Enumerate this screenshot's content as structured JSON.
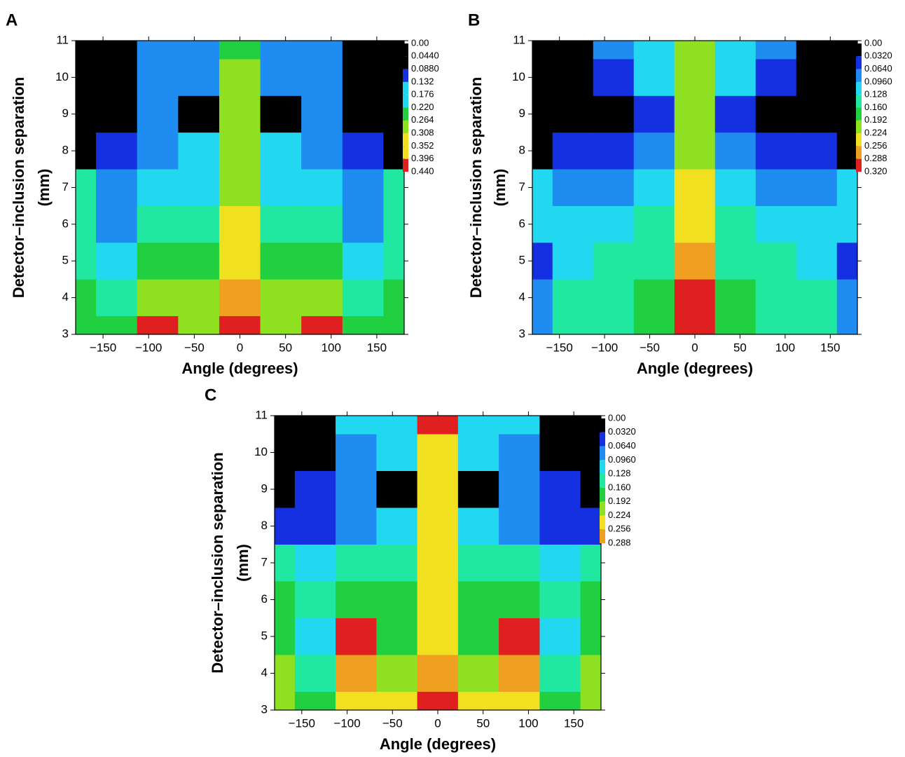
{
  "chart_data": [
    {
      "type": "contour",
      "panel": "A",
      "xlabel": "Angle (degrees)",
      "ylabel": [
        "Detector–inclusion separation",
        "(mm)"
      ],
      "x": [
        -180,
        -135,
        -90,
        -45,
        0,
        45,
        90,
        135,
        180
      ],
      "y": [
        3,
        4,
        5,
        6,
        7,
        8,
        9,
        10,
        11
      ],
      "z": [
        [
          0.24,
          0.22,
          0.4,
          0.3,
          0.44,
          0.3,
          0.4,
          0.22,
          0.24
        ],
        [
          0.22,
          0.2,
          0.3,
          0.28,
          0.37,
          0.28,
          0.3,
          0.2,
          0.22
        ],
        [
          0.2,
          0.14,
          0.25,
          0.24,
          0.33,
          0.24,
          0.25,
          0.14,
          0.2
        ],
        [
          0.18,
          0.13,
          0.2,
          0.2,
          0.31,
          0.2,
          0.2,
          0.13,
          0.18
        ],
        [
          0.2,
          0.12,
          0.15,
          0.17,
          0.3,
          0.17,
          0.15,
          0.12,
          0.2
        ],
        [
          0.04,
          0.06,
          0.12,
          0.14,
          0.29,
          0.14,
          0.12,
          0.06,
          0.04
        ],
        [
          0,
          0.01,
          0.09,
          0,
          0.28,
          0,
          0.09,
          0.01,
          0
        ],
        [
          0,
          0,
          0.1,
          0.09,
          0.27,
          0.09,
          0.1,
          0,
          0
        ],
        [
          0,
          0,
          0.11,
          0.12,
          0.26,
          0.12,
          0.11,
          0,
          0
        ]
      ],
      "xlim": [
        -180,
        180
      ],
      "ylim": [
        3,
        11
      ],
      "xticks": [
        {
          "value": -150,
          "label": "−150"
        },
        {
          "value": -100,
          "label": "−100"
        },
        {
          "value": -50,
          "label": "−50"
        },
        0,
        50,
        100,
        150
      ],
      "yticks": [
        3,
        4,
        5,
        6,
        7,
        8,
        9,
        10,
        11
      ],
      "zticks": [
        {
          "value": 0,
          "label": "0.00"
        },
        {
          "value": 0.044,
          "label": "0.0440"
        },
        {
          "value": 0.088,
          "label": "0.0880"
        },
        0.132,
        0.176,
        {
          "value": 0.22,
          "label": "0.220"
        },
        0.264,
        0.308,
        0.352,
        0.396,
        {
          "value": 0.44,
          "label": "0.440"
        }
      ],
      "colors": [
        "#000000",
        "#1530e0",
        "#1e8cf0",
        "#22d8f0",
        "#20e8a0",
        "#20d040",
        "#8ee020",
        "#f0e020",
        "#f0a020",
        "#e02020"
      ]
    },
    {
      "type": "contour",
      "panel": "B",
      "xlabel": "Angle (degrees)",
      "ylabel": [
        "Detector–inclusion separation",
        "(mm)"
      ],
      "x": [
        -180,
        -135,
        -90,
        -45,
        0,
        45,
        90,
        135,
        180
      ],
      "y": [
        3,
        4,
        5,
        6,
        7,
        8,
        9,
        10,
        11
      ],
      "z": [
        [
          0.08,
          0.13,
          0.14,
          0.17,
          0.32,
          0.17,
          0.14,
          0.13,
          0.08
        ],
        [
          0.07,
          0.13,
          0.14,
          0.16,
          0.29,
          0.16,
          0.14,
          0.13,
          0.07
        ],
        [
          0.06,
          0.12,
          0.14,
          0.15,
          0.27,
          0.15,
          0.14,
          0.12,
          0.06
        ],
        [
          0.1,
          0.1,
          0.11,
          0.13,
          0.24,
          0.13,
          0.11,
          0.1,
          0.1
        ],
        [
          0.12,
          0.09,
          0.08,
          0.1,
          0.23,
          0.1,
          0.08,
          0.09,
          0.12
        ],
        [
          0.03,
          0.04,
          0.04,
          0.07,
          0.22,
          0.07,
          0.04,
          0.04,
          0.03
        ],
        [
          0,
          0,
          0,
          0.06,
          0.22,
          0.06,
          0,
          0,
          0
        ],
        [
          0,
          0,
          0.05,
          0.1,
          0.21,
          0.1,
          0.05,
          0,
          0
        ],
        [
          0,
          0,
          0.09,
          0.1,
          0.2,
          0.1,
          0.09,
          0,
          0
        ]
      ],
      "xlim": [
        -180,
        180
      ],
      "ylim": [
        3,
        11
      ],
      "xticks": [
        {
          "value": -150,
          "label": "−150"
        },
        {
          "value": -100,
          "label": "−100"
        },
        {
          "value": -50,
          "label": "−50"
        },
        0,
        50,
        100,
        150
      ],
      "yticks": [
        3,
        4,
        5,
        6,
        7,
        8,
        9,
        10,
        11
      ],
      "zticks": [
        {
          "value": 0,
          "label": "0.00"
        },
        {
          "value": 0.032,
          "label": "0.0320"
        },
        {
          "value": 0.064,
          "label": "0.0640"
        },
        {
          "value": 0.096,
          "label": "0.0960"
        },
        0.128,
        {
          "value": 0.16,
          "label": "0.160"
        },
        0.192,
        0.224,
        0.256,
        0.288,
        {
          "value": 0.32,
          "label": "0.320"
        }
      ],
      "colors": [
        "#000000",
        "#1530e0",
        "#1e8cf0",
        "#22d8f0",
        "#20e8a0",
        "#20d040",
        "#8ee020",
        "#f0e020",
        "#f0a020",
        "#e02020"
      ]
    },
    {
      "type": "contour",
      "panel": "C",
      "xlabel": "Angle (degrees)",
      "ylabel": [
        "Detector–inclusion separation",
        "(mm)"
      ],
      "x": [
        -180,
        -135,
        -90,
        -45,
        0,
        45,
        90,
        135,
        180
      ],
      "y": [
        3,
        4,
        5,
        6,
        7,
        8,
        9,
        10,
        11
      ],
      "z": [
        [
          0.19,
          0.17,
          0.23,
          0.21,
          0.29,
          0.21,
          0.23,
          0.17,
          0.19
        ],
        [
          0.18,
          0.14,
          0.24,
          0.2,
          0.25,
          0.2,
          0.24,
          0.14,
          0.18
        ],
        [
          0.17,
          0.1,
          0.28,
          0.17,
          0.22,
          0.17,
          0.28,
          0.1,
          0.17
        ],
        [
          0.16,
          0.12,
          0.16,
          0.15,
          0.22,
          0.15,
          0.16,
          0.12,
          0.16
        ],
        [
          0.14,
          0.1,
          0.12,
          0.13,
          0.21,
          0.13,
          0.12,
          0.1,
          0.14
        ],
        [
          0.03,
          0.05,
          0.07,
          0.1,
          0.21,
          0.1,
          0.07,
          0.05,
          0.03
        ],
        [
          0,
          0.04,
          0.06,
          0,
          0.22,
          0,
          0.06,
          0.04,
          0
        ],
        [
          0,
          0,
          0.06,
          0.1,
          0.22,
          0.1,
          0.06,
          0,
          0
        ],
        [
          0,
          0,
          0.09,
          0.1,
          0.28,
          0.1,
          0.09,
          0,
          0
        ]
      ],
      "xlim": [
        -180,
        180
      ],
      "ylim": [
        3,
        11
      ],
      "xticks": [
        {
          "value": -150,
          "label": "−150"
        },
        {
          "value": -100,
          "label": "−100"
        },
        {
          "value": -50,
          "label": "−50"
        },
        0,
        50,
        100,
        150
      ],
      "yticks": [
        3,
        4,
        5,
        6,
        7,
        8,
        9,
        10,
        11
      ],
      "zticks": [
        {
          "value": 0,
          "label": "0.00"
        },
        {
          "value": 0.032,
          "label": "0.0320"
        },
        {
          "value": 0.064,
          "label": "0.0640"
        },
        {
          "value": 0.096,
          "label": "0.0960"
        },
        0.128,
        {
          "value": 0.16,
          "label": "0.160"
        },
        0.192,
        0.224,
        0.256,
        0.288
      ],
      "colors": [
        "#000000",
        "#1530e0",
        "#1e8cf0",
        "#22d8f0",
        "#20e8a0",
        "#20d040",
        "#8ee020",
        "#f0e020",
        "#f0a020",
        "#e02020"
      ]
    }
  ]
}
